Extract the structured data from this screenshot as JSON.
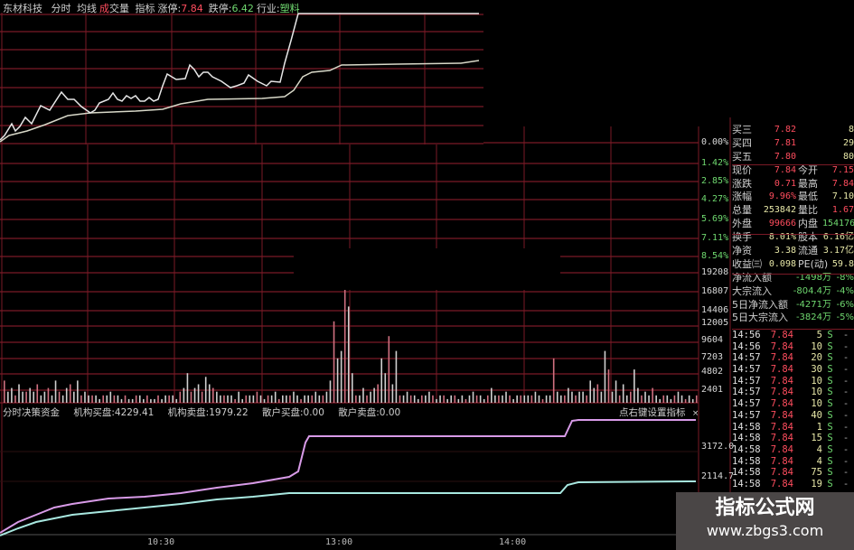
{
  "header": {
    "stock_name": "东材科技",
    "tab_intraday": "分时",
    "tab_avg": "均线",
    "tab_volume_prefix": "成",
    "tab_volume": "交量",
    "tab_indicator": "指标",
    "limit_up_label": "涨停:",
    "limit_up_value": "7.84",
    "limit_down_label": "跌停:",
    "limit_down_value": "6.42",
    "industry_label": "行业:",
    "industry_value": "塑料"
  },
  "price_axis": [
    "0.00%",
    "1.42%",
    "2.85%",
    "4.27%",
    "5.69%",
    "7.11%",
    "8.54%"
  ],
  "volume_axis": [
    "19208",
    "16807",
    "14406",
    "12005",
    "9604",
    "7203",
    "4802",
    "2401"
  ],
  "indicator_axis": [
    "3172.0",
    "2114.7"
  ],
  "quote": {
    "bids": [
      {
        "label": "买三",
        "price": "7.82",
        "qty": "8"
      },
      {
        "label": "买四",
        "price": "7.81",
        "qty": "29"
      },
      {
        "label": "买五",
        "price": "7.80",
        "qty": "80"
      }
    ],
    "stats": [
      {
        "l1": "现价",
        "v1": "7.84",
        "c1": "red",
        "l2": "今开",
        "v2": "7.15",
        "c2": "red"
      },
      {
        "l1": "涨跌",
        "v1": "0.71",
        "c1": "red",
        "l2": "最高",
        "v2": "7.84",
        "c2": "red"
      },
      {
        "l1": "涨幅",
        "v1": "9.96%",
        "c1": "red",
        "l2": "最低",
        "v2": "7.10",
        "c2": "yel"
      },
      {
        "l1": "总量",
        "v1": "253842",
        "c1": "yel",
        "l2": "量比",
        "v2": "1.67",
        "c2": "red"
      },
      {
        "l1": "外盘",
        "v1": "99666",
        "c1": "red",
        "l2": "内盘",
        "v2": "154176",
        "c2": "green"
      },
      {
        "l1": "换手",
        "v1": "8.01%",
        "c1": "yel",
        "l2": "股本",
        "v2": "6.16亿",
        "c2": "yel"
      },
      {
        "l1": "净资",
        "v1": "3.38",
        "c1": "yel",
        "l2": "流通",
        "v2": "3.17亿",
        "c2": "yel"
      },
      {
        "l1": "收益㈢",
        "v1": "0.098",
        "c1": "yel",
        "l2": "PE(动)",
        "v2": "59.8",
        "c2": "yel"
      }
    ],
    "flows": [
      {
        "label": "净流入额",
        "value": "-1498万",
        "pct": "-8%"
      },
      {
        "label": "大宗流入",
        "value": "-804.4万",
        "pct": "-4%"
      },
      {
        "label": "5日净流入额",
        "value": "-4271万",
        "pct": "-6%"
      },
      {
        "label": "5日大宗流入",
        "value": "-3824万",
        "pct": "-5%"
      }
    ],
    "ticks": [
      {
        "time": "14:56",
        "price": "7.84",
        "qty": "5",
        "side": "S",
        "dash": "-"
      },
      {
        "time": "14:56",
        "price": "7.84",
        "qty": "10",
        "side": "S",
        "dash": "-"
      },
      {
        "time": "14:57",
        "price": "7.84",
        "qty": "20",
        "side": "S",
        "dash": "-"
      },
      {
        "time": "14:57",
        "price": "7.84",
        "qty": "30",
        "side": "S",
        "dash": "-"
      },
      {
        "time": "14:57",
        "price": "7.84",
        "qty": "10",
        "side": "S",
        "dash": "-"
      },
      {
        "time": "14:57",
        "price": "7.84",
        "qty": "10",
        "side": "S",
        "dash": "-"
      },
      {
        "time": "14:57",
        "price": "7.84",
        "qty": "10",
        "side": "S",
        "dash": "-"
      },
      {
        "time": "14:57",
        "price": "7.84",
        "qty": "40",
        "side": "S",
        "dash": "-"
      },
      {
        "time": "14:58",
        "price": "7.84",
        "qty": "1",
        "side": "S",
        "dash": "-"
      },
      {
        "time": "14:58",
        "price": "7.84",
        "qty": "15",
        "side": "S",
        "dash": "-"
      },
      {
        "time": "14:58",
        "price": "7.84",
        "qty": "4",
        "side": "S",
        "dash": "-"
      },
      {
        "time": "14:58",
        "price": "7.84",
        "qty": "4",
        "side": "S",
        "dash": "-"
      },
      {
        "time": "14:58",
        "price": "7.84",
        "qty": "75",
        "side": "S",
        "dash": "-"
      },
      {
        "time": "14:58",
        "price": "7.84",
        "qty": "19",
        "side": "S",
        "dash": "-"
      }
    ]
  },
  "indicator": {
    "name": "分时决策资金",
    "inst_buy_label": "机构买盘:",
    "inst_buy": "4229.41",
    "inst_sell_label": "机构卖盘:",
    "inst_sell": "1979.22",
    "retail_buy_label": "散户买盘:",
    "retail_buy": "0.00",
    "retail_sell_label": "散户卖盘:",
    "retail_sell": "0.00",
    "hint": "点右键设置指标",
    "close": "×"
  },
  "time_axis": [
    "10:30",
    "13:00",
    "14:00"
  ],
  "watermark": {
    "title": "指标公式网",
    "url": "www.zbgs3.com"
  },
  "colors": {
    "grid": "#7a1a26",
    "price_line": "#e6e6e6",
    "avg_line": "#d8d8c8",
    "inst_line": "#d89be8",
    "retail_line": "#a8e8e0",
    "up": "#ff4d5e",
    "down": "#6fd86f"
  },
  "volume_profile": [
    6,
    3,
    4,
    2,
    5,
    3,
    3,
    4,
    3,
    5,
    2,
    3,
    4,
    2,
    6,
    3,
    2,
    4,
    5,
    3,
    6,
    2,
    3,
    2,
    2,
    2,
    1,
    2,
    2,
    3,
    2,
    2,
    1,
    2,
    1,
    1,
    2,
    2,
    1,
    2,
    1,
    1,
    2,
    1,
    2,
    2,
    2,
    1,
    3,
    4,
    8,
    3,
    4,
    5,
    3,
    7,
    5,
    4,
    3,
    2,
    2,
    2,
    2,
    1,
    3,
    1,
    2,
    2,
    2,
    3,
    2,
    1,
    2,
    2,
    3,
    1,
    2,
    2,
    2,
    3,
    2,
    1,
    2,
    2,
    2,
    3,
    2,
    2,
    3,
    6,
    22,
    12,
    14,
    34,
    26,
    8,
    2,
    2,
    4,
    2,
    3,
    4,
    5,
    12,
    8,
    18,
    5,
    14,
    2,
    2,
    3,
    2,
    2,
    1,
    2,
    2,
    3,
    2,
    1,
    2,
    2,
    1,
    2,
    2,
    1,
    2,
    1,
    2,
    3,
    2,
    2,
    1,
    2,
    4,
    2,
    2,
    2,
    3,
    2,
    1,
    2,
    2,
    2,
    2,
    2,
    3,
    2,
    1,
    2,
    2,
    12,
    3,
    2,
    2,
    4,
    3,
    2,
    3,
    3,
    2,
    6,
    4,
    5,
    3,
    14,
    9,
    3,
    6,
    2,
    5,
    2,
    3,
    9,
    4,
    2,
    3,
    2,
    4,
    2,
    1,
    2,
    2,
    1,
    2,
    3,
    2,
    1,
    2,
    1,
    2
  ]
}
